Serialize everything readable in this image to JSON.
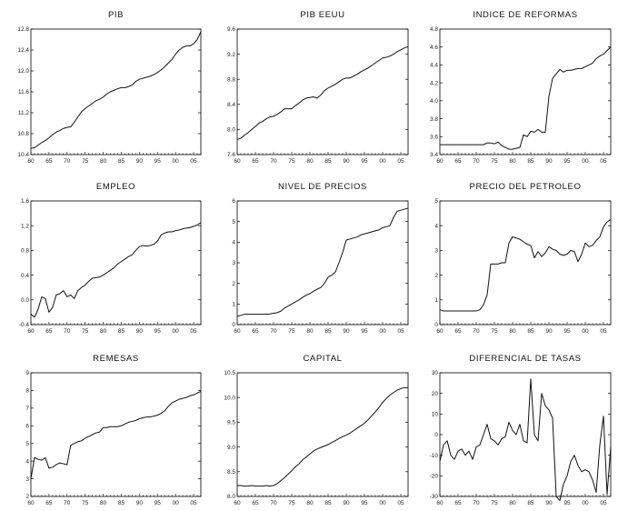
{
  "x_tick_labels": [
    "60",
    "65",
    "70",
    "75",
    "80",
    "85",
    "90",
    "95",
    "00",
    "05"
  ],
  "chart_data": [
    {
      "type": "line",
      "title": "PIB",
      "xlim": [
        1960,
        2007
      ],
      "ylim": [
        10.4,
        12.8
      ],
      "yticks": [
        "10.4",
        "10.8",
        "11.2",
        "11.6",
        "12.0",
        "12.4",
        "12.8"
      ],
      "ytick_values": [
        10.4,
        10.8,
        11.2,
        11.6,
        12.0,
        12.4,
        12.8
      ],
      "x": [
        1960,
        1961,
        1962,
        1963,
        1964,
        1965,
        1966,
        1967,
        1968,
        1969,
        1970,
        1971,
        1972,
        1973,
        1974,
        1975,
        1976,
        1977,
        1978,
        1979,
        1980,
        1981,
        1982,
        1983,
        1984,
        1985,
        1986,
        1987,
        1988,
        1989,
        1990,
        1991,
        1992,
        1993,
        1994,
        1995,
        1996,
        1997,
        1998,
        1999,
        2000,
        2001,
        2002,
        2003,
        2004,
        2005,
        2006,
        2007
      ],
      "values": [
        10.52,
        10.53,
        10.58,
        10.63,
        10.67,
        10.72,
        10.78,
        10.83,
        10.86,
        10.9,
        10.92,
        10.93,
        11.02,
        11.12,
        11.22,
        11.28,
        11.33,
        11.38,
        11.43,
        11.46,
        11.5,
        11.56,
        11.6,
        11.63,
        11.66,
        11.68,
        11.68,
        11.7,
        11.73,
        11.8,
        11.84,
        11.86,
        11.88,
        11.9,
        11.93,
        11.97,
        12.02,
        12.08,
        12.15,
        12.22,
        12.32,
        12.4,
        12.45,
        12.48,
        12.48,
        12.52,
        12.6,
        12.75
      ]
    },
    {
      "type": "line",
      "title": "PIB EEUU",
      "xlim": [
        1960,
        2007
      ],
      "ylim": [
        7.6,
        9.6
      ],
      "yticks": [
        "7.6",
        "8.0",
        "8.4",
        "8.8",
        "9.2",
        "9.6"
      ],
      "ytick_values": [
        7.6,
        8.0,
        8.4,
        8.8,
        9.2,
        9.6
      ],
      "x": [
        1960,
        1961,
        1962,
        1963,
        1964,
        1965,
        1966,
        1967,
        1968,
        1969,
        1970,
        1971,
        1972,
        1973,
        1974,
        1975,
        1976,
        1977,
        1978,
        1979,
        1980,
        1981,
        1982,
        1983,
        1984,
        1985,
        1986,
        1987,
        1988,
        1989,
        1990,
        1991,
        1992,
        1993,
        1994,
        1995,
        1996,
        1997,
        1998,
        1999,
        2000,
        2001,
        2002,
        2003,
        2004,
        2005,
        2006,
        2007
      ],
      "values": [
        7.84,
        7.86,
        7.91,
        7.95,
        8.0,
        8.05,
        8.1,
        8.13,
        8.17,
        8.2,
        8.21,
        8.24,
        8.28,
        8.33,
        8.33,
        8.33,
        8.38,
        8.42,
        8.47,
        8.5,
        8.51,
        8.52,
        8.5,
        8.55,
        8.62,
        8.66,
        8.69,
        8.72,
        8.76,
        8.8,
        8.82,
        8.82,
        8.85,
        8.88,
        8.92,
        8.95,
        8.98,
        9.02,
        9.06,
        9.1,
        9.14,
        9.15,
        9.17,
        9.2,
        9.24,
        9.27,
        9.3,
        9.32
      ]
    },
    {
      "type": "line",
      "title": "INDICE DE REFORMAS",
      "xlim": [
        1960,
        2007
      ],
      "ylim": [
        3.4,
        4.8
      ],
      "yticks": [
        "3.4",
        "3.6",
        "3.8",
        "4.0",
        "4.2",
        "4.4",
        "4.6",
        "4.8"
      ],
      "ytick_values": [
        3.4,
        3.6,
        3.8,
        4.0,
        4.2,
        4.4,
        4.6,
        4.8
      ],
      "x": [
        1960,
        1961,
        1962,
        1963,
        1964,
        1965,
        1966,
        1967,
        1968,
        1969,
        1970,
        1971,
        1972,
        1973,
        1974,
        1975,
        1976,
        1977,
        1978,
        1979,
        1980,
        1981,
        1982,
        1983,
        1984,
        1985,
        1986,
        1987,
        1988,
        1989,
        1990,
        1991,
        1992,
        1993,
        1994,
        1995,
        1996,
        1997,
        1998,
        1999,
        2000,
        2001,
        2002,
        2003,
        2004,
        2005,
        2006,
        2007
      ],
      "values": [
        3.51,
        3.51,
        3.51,
        3.51,
        3.51,
        3.51,
        3.51,
        3.51,
        3.51,
        3.51,
        3.51,
        3.51,
        3.51,
        3.53,
        3.53,
        3.52,
        3.54,
        3.5,
        3.48,
        3.46,
        3.46,
        3.47,
        3.48,
        3.62,
        3.6,
        3.66,
        3.65,
        3.68,
        3.65,
        3.65,
        4.05,
        4.25,
        4.3,
        4.35,
        4.32,
        4.34,
        4.34,
        4.35,
        4.36,
        4.36,
        4.38,
        4.4,
        4.42,
        4.47,
        4.5,
        4.52,
        4.56,
        4.6
      ]
    },
    {
      "type": "line",
      "title": "EMPLEO",
      "xlim": [
        1960,
        2007
      ],
      "ylim": [
        -0.4,
        1.6
      ],
      "yticks": [
        "-0.4",
        "0.0",
        "0.4",
        "0.8",
        "1.2",
        "1.6"
      ],
      "ytick_values": [
        -0.4,
        0.0,
        0.4,
        0.8,
        1.2,
        1.6
      ],
      "x": [
        1960,
        1961,
        1962,
        1963,
        1964,
        1965,
        1966,
        1967,
        1968,
        1969,
        1970,
        1971,
        1972,
        1973,
        1974,
        1975,
        1976,
        1977,
        1978,
        1979,
        1980,
        1981,
        1982,
        1983,
        1984,
        1985,
        1986,
        1987,
        1988,
        1989,
        1990,
        1991,
        1992,
        1993,
        1994,
        1995,
        1996,
        1997,
        1998,
        1999,
        2000,
        2001,
        2002,
        2003,
        2004,
        2005,
        2006,
        2007
      ],
      "values": [
        -0.23,
        -0.28,
        -0.15,
        0.05,
        0.02,
        -0.2,
        -0.12,
        0.08,
        0.1,
        0.15,
        0.05,
        0.08,
        0.02,
        0.15,
        0.2,
        0.24,
        0.3,
        0.35,
        0.36,
        0.37,
        0.4,
        0.44,
        0.48,
        0.52,
        0.58,
        0.62,
        0.66,
        0.7,
        0.73,
        0.8,
        0.86,
        0.88,
        0.87,
        0.88,
        0.9,
        0.95,
        1.05,
        1.08,
        1.1,
        1.1,
        1.12,
        1.13,
        1.15,
        1.16,
        1.17,
        1.19,
        1.21,
        1.25
      ]
    },
    {
      "type": "line",
      "title": "NIVEL DE PRECIOS",
      "xlim": [
        1960,
        2007
      ],
      "ylim": [
        0,
        6
      ],
      "yticks": [
        "0",
        "1",
        "2",
        "3",
        "4",
        "5",
        "6"
      ],
      "ytick_values": [
        0,
        1,
        2,
        3,
        4,
        5,
        6
      ],
      "x": [
        1960,
        1961,
        1962,
        1963,
        1964,
        1965,
        1966,
        1967,
        1968,
        1969,
        1970,
        1971,
        1972,
        1973,
        1974,
        1975,
        1976,
        1977,
        1978,
        1979,
        1980,
        1981,
        1982,
        1983,
        1984,
        1985,
        1986,
        1987,
        1988,
        1989,
        1990,
        1991,
        1992,
        1993,
        1994,
        1995,
        1996,
        1997,
        1998,
        1999,
        2000,
        2001,
        2002,
        2003,
        2004,
        2005,
        2006,
        2007
      ],
      "values": [
        0.4,
        0.45,
        0.5,
        0.5,
        0.5,
        0.5,
        0.5,
        0.5,
        0.5,
        0.52,
        0.55,
        0.58,
        0.65,
        0.8,
        0.9,
        1.0,
        1.1,
        1.2,
        1.32,
        1.43,
        1.5,
        1.62,
        1.72,
        1.8,
        2.0,
        2.3,
        2.4,
        2.55,
        3.0,
        3.5,
        4.1,
        4.15,
        4.2,
        4.25,
        4.35,
        4.4,
        4.45,
        4.5,
        4.55,
        4.6,
        4.7,
        4.75,
        4.8,
        5.2,
        5.5,
        5.55,
        5.6,
        5.65
      ]
    },
    {
      "type": "line",
      "title": "PRECIO DEL PETROLEO",
      "xlim": [
        1960,
        2007
      ],
      "ylim": [
        0,
        5
      ],
      "yticks": [
        "0",
        "1",
        "2",
        "3",
        "4",
        "5"
      ],
      "ytick_values": [
        0,
        1,
        2,
        3,
        4,
        5
      ],
      "x": [
        1960,
        1961,
        1962,
        1963,
        1964,
        1965,
        1966,
        1967,
        1968,
        1969,
        1970,
        1971,
        1972,
        1973,
        1974,
        1975,
        1976,
        1977,
        1978,
        1979,
        1980,
        1981,
        1982,
        1983,
        1984,
        1985,
        1986,
        1987,
        1988,
        1989,
        1990,
        1991,
        1992,
        1993,
        1994,
        1995,
        1996,
        1997,
        1998,
        1999,
        2000,
        2001,
        2002,
        2003,
        2004,
        2005,
        2006,
        2007
      ],
      "values": [
        0.6,
        0.55,
        0.55,
        0.55,
        0.55,
        0.55,
        0.55,
        0.55,
        0.55,
        0.55,
        0.55,
        0.6,
        0.8,
        1.2,
        2.45,
        2.45,
        2.45,
        2.5,
        2.5,
        3.3,
        3.55,
        3.5,
        3.45,
        3.35,
        3.25,
        3.2,
        2.7,
        2.95,
        2.75,
        2.9,
        3.15,
        3.05,
        3.0,
        2.85,
        2.8,
        2.85,
        3.0,
        2.95,
        2.55,
        2.85,
        3.3,
        3.15,
        3.2,
        3.4,
        3.55,
        3.95,
        4.15,
        4.25
      ]
    },
    {
      "type": "line",
      "title": "REMESAS",
      "xlim": [
        1960,
        2007
      ],
      "ylim": [
        2,
        9
      ],
      "yticks": [
        "2",
        "3",
        "4",
        "5",
        "6",
        "7",
        "8",
        "9"
      ],
      "ytick_values": [
        2,
        3,
        4,
        5,
        6,
        7,
        8,
        9
      ],
      "x": [
        1960,
        1961,
        1962,
        1963,
        1964,
        1965,
        1966,
        1967,
        1968,
        1969,
        1970,
        1971,
        1972,
        1973,
        1974,
        1975,
        1976,
        1977,
        1978,
        1979,
        1980,
        1981,
        1982,
        1983,
        1984,
        1985,
        1986,
        1987,
        1988,
        1989,
        1990,
        1991,
        1992,
        1993,
        1994,
        1995,
        1996,
        1997,
        1998,
        1999,
        2000,
        2001,
        2002,
        2003,
        2004,
        2005,
        2006,
        2007
      ],
      "values": [
        3.0,
        4.2,
        4.1,
        4.05,
        4.2,
        3.6,
        3.65,
        3.8,
        3.9,
        3.85,
        3.8,
        4.9,
        5.0,
        5.1,
        5.15,
        5.3,
        5.4,
        5.5,
        5.6,
        5.65,
        5.9,
        5.9,
        5.95,
        5.95,
        5.95,
        6.0,
        6.1,
        6.2,
        6.25,
        6.3,
        6.4,
        6.45,
        6.5,
        6.5,
        6.55,
        6.6,
        6.7,
        6.85,
        7.1,
        7.3,
        7.4,
        7.5,
        7.55,
        7.6,
        7.7,
        7.75,
        7.85,
        7.95
      ]
    },
    {
      "type": "line",
      "title": "CAPITAL",
      "xlim": [
        1960,
        2007
      ],
      "ylim": [
        8.0,
        10.5
      ],
      "yticks": [
        "8.0",
        "8.5",
        "9.0",
        "9.5",
        "10.0",
        "10.5"
      ],
      "ytick_values": [
        8.0,
        8.5,
        9.0,
        9.5,
        10.0,
        10.5
      ],
      "x": [
        1960,
        1961,
        1962,
        1963,
        1964,
        1965,
        1966,
        1967,
        1968,
        1969,
        1970,
        1971,
        1972,
        1973,
        1974,
        1975,
        1976,
        1977,
        1978,
        1979,
        1980,
        1981,
        1982,
        1983,
        1984,
        1985,
        1986,
        1987,
        1988,
        1989,
        1990,
        1991,
        1992,
        1993,
        1994,
        1995,
        1996,
        1997,
        1998,
        1999,
        2000,
        2001,
        2002,
        2003,
        2004,
        2005,
        2006,
        2007
      ],
      "values": [
        8.22,
        8.22,
        8.21,
        8.21,
        8.22,
        8.21,
        8.21,
        8.21,
        8.22,
        8.21,
        8.22,
        8.26,
        8.32,
        8.38,
        8.45,
        8.52,
        8.6,
        8.66,
        8.74,
        8.8,
        8.86,
        8.92,
        8.96,
        8.99,
        9.02,
        9.05,
        9.09,
        9.13,
        9.17,
        9.21,
        9.24,
        9.28,
        9.33,
        9.38,
        9.43,
        9.48,
        9.55,
        9.63,
        9.71,
        9.8,
        9.9,
        9.98,
        10.05,
        10.1,
        10.15,
        10.18,
        10.2,
        10.2
      ]
    },
    {
      "type": "line",
      "title": "DIFERENCIAL DE TASAS",
      "xlim": [
        1960,
        2007
      ],
      "ylim": [
        -30,
        30
      ],
      "yticks": [
        "-30",
        "-20",
        "-10",
        "0",
        "10",
        "20",
        "30"
      ],
      "ytick_values": [
        -30,
        -20,
        -10,
        0,
        10,
        20,
        30
      ],
      "x": [
        1960,
        1961,
        1962,
        1963,
        1964,
        1965,
        1966,
        1967,
        1968,
        1969,
        1970,
        1971,
        1972,
        1973,
        1974,
        1975,
        1976,
        1977,
        1978,
        1979,
        1980,
        1981,
        1982,
        1983,
        1984,
        1985,
        1986,
        1987,
        1988,
        1989,
        1990,
        1991,
        1992,
        1993,
        1994,
        1995,
        1996,
        1997,
        1998,
        1999,
        2000,
        2001,
        2002,
        2003,
        2004,
        2005,
        2006,
        2007
      ],
      "values": [
        -13,
        -5,
        -3,
        -10,
        -12,
        -8,
        -7,
        -10,
        -8,
        -12,
        -6,
        -5,
        0,
        5,
        -2,
        -3,
        -5,
        -2,
        -1,
        6,
        2,
        0,
        5,
        -3,
        -4,
        27,
        0,
        -3,
        20,
        14,
        12,
        8,
        -30,
        -32,
        -24,
        -20,
        -13,
        -10,
        -15,
        -18,
        -17,
        -18,
        -22,
        -28,
        -5,
        9,
        -29,
        -6
      ]
    }
  ]
}
